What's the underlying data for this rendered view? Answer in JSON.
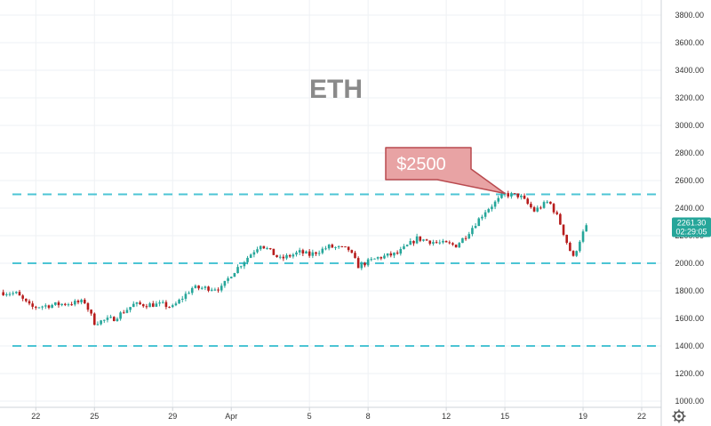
{
  "chart_data": {
    "type": "candlestick",
    "title": "ETH",
    "ylim": [
      1000,
      3800
    ],
    "y_ticks": [
      "1000.00",
      "1200.00",
      "1400.00",
      "1600.00",
      "1800.00",
      "2000.00",
      "2200.00",
      "2400.00",
      "2600.00",
      "2800.00",
      "3000.00",
      "3200.00",
      "3400.00",
      "3600.00",
      "3800.00"
    ],
    "x_ticks": [
      {
        "label": "22",
        "date": "2021-03-22"
      },
      {
        "label": "25",
        "date": "2021-03-25"
      },
      {
        "label": "29",
        "date": "2021-03-29"
      },
      {
        "label": "Apr",
        "date": "2021-04-01"
      },
      {
        "label": "5",
        "date": "2021-04-05"
      },
      {
        "label": "8",
        "date": "2021-04-08"
      },
      {
        "label": "12",
        "date": "2021-04-12"
      },
      {
        "label": "15",
        "date": "2021-04-15"
      },
      {
        "label": "19",
        "date": "2021-04-19"
      },
      {
        "label": "22",
        "date": "2021-04-22"
      }
    ],
    "x_range": [
      "2021-03-20 04:00",
      "2021-04-23 00:00"
    ],
    "price_path": [
      [
        "2021-03-20 04:00",
        1790
      ],
      [
        "2021-03-21 00:00",
        1780
      ],
      [
        "2021-03-21 18:00",
        1680
      ],
      [
        "2021-03-23 00:00",
        1700
      ],
      [
        "2021-03-24 12:00",
        1720
      ],
      [
        "2021-03-25 00:00",
        1570
      ],
      [
        "2021-03-26 00:00",
        1600
      ],
      [
        "2021-03-27 00:00",
        1700
      ],
      [
        "2021-03-28 12:00",
        1700
      ],
      [
        "2021-03-29 00:00",
        1680
      ],
      [
        "2021-03-30 00:00",
        1820
      ],
      [
        "2021-03-31 12:00",
        1820
      ],
      [
        "2021-04-01 00:00",
        1920
      ],
      [
        "2021-04-02 12:00",
        2140
      ],
      [
        "2021-04-03 12:00",
        2030
      ],
      [
        "2021-04-04 12:00",
        2080
      ],
      [
        "2021-04-05 00:00",
        2060
      ],
      [
        "2021-04-06 00:00",
        2120
      ],
      [
        "2021-04-07 00:00",
        2100
      ],
      [
        "2021-04-07 12:00",
        1980
      ],
      [
        "2021-04-08 12:00",
        2040
      ],
      [
        "2021-04-09 12:00",
        2070
      ],
      [
        "2021-04-10 12:00",
        2180
      ],
      [
        "2021-04-11 12:00",
        2150
      ],
      [
        "2021-04-12 12:00",
        2130
      ],
      [
        "2021-04-13 00:00",
        2200
      ],
      [
        "2021-04-14 00:00",
        2380
      ],
      [
        "2021-04-15 00:00",
        2500
      ],
      [
        "2021-04-15 18:00",
        2490
      ],
      [
        "2021-04-16 12:00",
        2380
      ],
      [
        "2021-04-17 06:00",
        2450
      ],
      [
        "2021-04-17 18:00",
        2320
      ],
      [
        "2021-04-18 06:00",
        2120
      ],
      [
        "2021-04-18 12:00",
        2040
      ],
      [
        "2021-04-18 22:00",
        2200
      ],
      [
        "2021-04-19 04:00",
        2261.3
      ]
    ],
    "annotation": {
      "text": "$2500",
      "points_to": [
        "2021-04-15 00:00",
        2500
      ]
    },
    "support_lines": [
      2500,
      2000,
      1400
    ],
    "last_price": {
      "value": "2261.30",
      "countdown": "02:29:05"
    },
    "colors": {
      "up": "#26a69a",
      "down": "#b71c1c",
      "support_line": "#4cc4d4",
      "title": "#8a8a8a",
      "annotation_fill": "#e8a3a4",
      "annotation_border": "#b94a4f",
      "price_badge": "#26a69a",
      "grid": "#eef1f4"
    },
    "grid": true,
    "settings_icon": "gear-icon"
  }
}
